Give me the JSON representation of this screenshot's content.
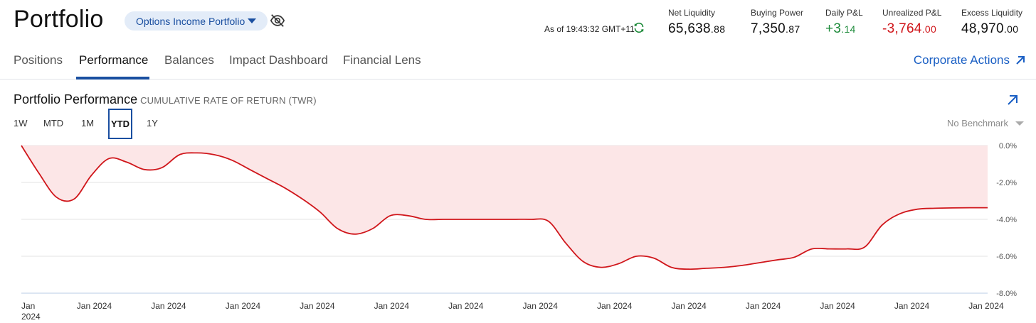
{
  "header": {
    "title": "Portfolio",
    "portfolio_selector": "Options Income Portfolio",
    "as_of": "As of 19:43:32 GMT+11"
  },
  "metrics": [
    {
      "label": "Net Liquidity",
      "whole": "65,638",
      "dec": ".88",
      "tone": "neutral"
    },
    {
      "label": "Buying Power",
      "whole": "7,350",
      "dec": ".87",
      "tone": "neutral"
    },
    {
      "label": "Daily P&L",
      "whole": "+3",
      "dec": ".14",
      "tone": "pos"
    },
    {
      "label": "Unrealized P&L",
      "whole": "-3,764",
      "dec": ".00",
      "tone": "neg"
    },
    {
      "label": "Excess Liquidity",
      "whole": "48,970",
      "dec": ".00",
      "tone": "neutral"
    }
  ],
  "tabs": [
    {
      "label": "Positions",
      "active": false
    },
    {
      "label": "Performance",
      "active": true
    },
    {
      "label": "Balances",
      "active": false
    },
    {
      "label": "Impact Dashboard",
      "active": false
    },
    {
      "label": "Financial Lens",
      "active": false
    }
  ],
  "corporate_actions": "Corporate Actions",
  "performance": {
    "title": "Portfolio Performance",
    "subtitle": "CUMULATIVE RATE OF RETURN (TWR)",
    "ranges": [
      "1W",
      "MTD",
      "1M",
      "YTD",
      "1Y"
    ],
    "active_range": "YTD",
    "benchmark": "No Benchmark"
  },
  "colors": {
    "accent": "#1a4fa0",
    "link": "#1a5fc4",
    "line": "#d0161b",
    "fill": "#fce6e7",
    "positive": "#1d8a3a",
    "negative": "#d0161b"
  },
  "chart_data": {
    "type": "area",
    "title": "Portfolio Performance",
    "subtitle": "CUMULATIVE RATE OF RETURN (TWR)",
    "y_tick_labels": [
      "0.0%",
      "-2.0%",
      "-4.0%",
      "-6.0%",
      "-8.0%"
    ],
    "ylim": [
      -8,
      0
    ],
    "x_tick_labels": [
      "Jan\n2024",
      "Jan 2024",
      "Jan 2024",
      "Jan 2024",
      "Jan 2024",
      "Jan 2024",
      "Jan 2024",
      "Jan 2024",
      "Jan 2024",
      "Jan 2024",
      "Jan 2024",
      "Jan 2024",
      "Jan 2024",
      "Jan 2024"
    ],
    "grid": true,
    "series": [
      {
        "values": [
          0.0,
          -1.5,
          -2.8,
          -2.9,
          -1.6,
          -0.7,
          -0.9,
          -1.3,
          -1.2,
          -0.5,
          -0.4,
          -0.5,
          -0.8,
          -1.3,
          -1.8,
          -2.3,
          -2.9,
          -3.6,
          -4.5,
          -4.8,
          -4.5,
          -3.8,
          -3.8,
          -4.0,
          -4.0,
          -4.0,
          -4.0,
          -4.0,
          -4.0,
          -4.0,
          -4.1,
          -5.3,
          -6.3,
          -6.6,
          -6.4,
          -6.0,
          -6.1,
          -6.6,
          -6.7,
          -6.65,
          -6.6,
          -6.5,
          -6.35,
          -6.2,
          -6.05,
          -5.6,
          -5.6,
          -5.6,
          -5.5,
          -4.3,
          -3.7,
          -3.45,
          -3.4,
          -3.38,
          -3.37,
          -3.37
        ]
      }
    ]
  }
}
